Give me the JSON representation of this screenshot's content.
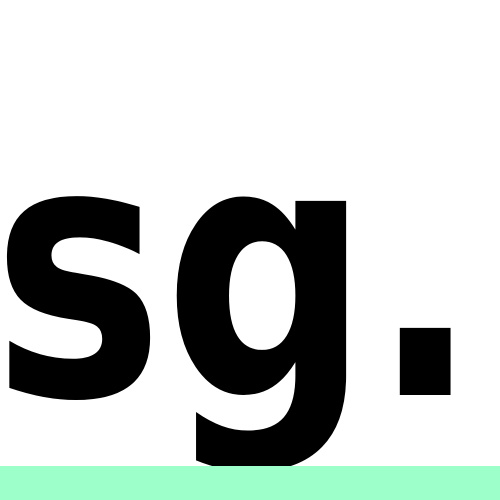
{
  "logo": {
    "text": "sg.",
    "color": "#000000"
  },
  "background_color": "#ffffff",
  "accent_strip": {
    "color": "#9dffc9"
  }
}
